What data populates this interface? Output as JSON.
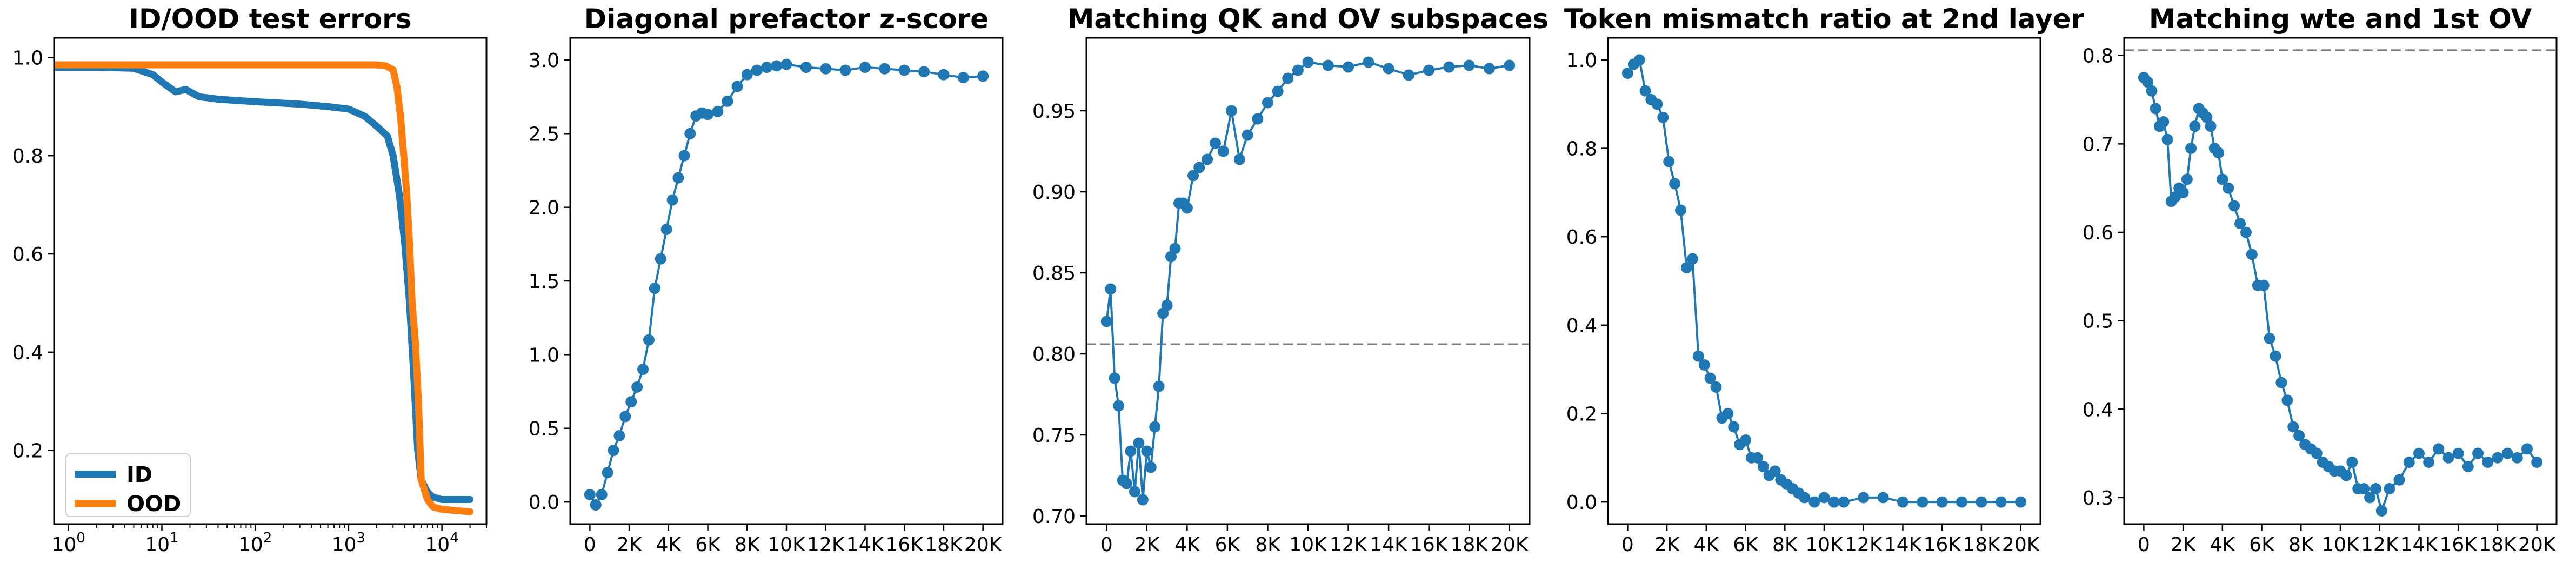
{
  "chart_data": [
    {
      "type": "line",
      "title": "ID/OOD test errors",
      "xscale": "log",
      "xlim": [
        0.7,
        30000
      ],
      "ylim": [
        0.05,
        1.04
      ],
      "xticks": [
        1,
        10,
        100,
        1000,
        10000
      ],
      "xtick_labels": [
        {
          "base": "10",
          "exp": "0"
        },
        {
          "base": "10",
          "exp": "1"
        },
        {
          "base": "10",
          "exp": "2"
        },
        {
          "base": "10",
          "exp": "3"
        },
        {
          "base": "10",
          "exp": "4"
        }
      ],
      "yticks": [
        0.2,
        0.4,
        0.6,
        0.8,
        1.0
      ],
      "ytick_labels": [
        "0.2",
        "0.4",
        "0.6",
        "0.8",
        "1.0"
      ],
      "legend": {
        "placement": "lower-left",
        "entries": [
          "ID",
          "OOD"
        ]
      },
      "series": [
        {
          "name": "ID",
          "color": "#1f77b4",
          "x": [
            0.7,
            2,
            5,
            8,
            10,
            14,
            18,
            25,
            40,
            100,
            300,
            600,
            1000,
            1500,
            2000,
            2600,
            3000,
            3500,
            4000,
            4500,
            5000,
            5500,
            6000,
            7000,
            8000,
            10000,
            20000
          ],
          "y": [
            0.98,
            0.98,
            0.978,
            0.965,
            0.95,
            0.93,
            0.935,
            0.92,
            0.915,
            0.91,
            0.905,
            0.9,
            0.895,
            0.88,
            0.86,
            0.84,
            0.8,
            0.72,
            0.62,
            0.5,
            0.35,
            0.2,
            0.14,
            0.115,
            0.105,
            0.1,
            0.1
          ]
        },
        {
          "name": "OOD",
          "color": "#ff7f0e",
          "x": [
            0.7,
            10,
            100,
            1000,
            2000,
            2500,
            3000,
            3300,
            3600,
            3900,
            4200,
            4500,
            4800,
            5200,
            5600,
            6000,
            7000,
            8000,
            10000,
            20000
          ],
          "y": [
            0.985,
            0.985,
            0.985,
            0.985,
            0.985,
            0.983,
            0.975,
            0.94,
            0.88,
            0.8,
            0.72,
            0.62,
            0.5,
            0.42,
            0.3,
            0.14,
            0.1,
            0.085,
            0.08,
            0.075
          ]
        }
      ]
    },
    {
      "type": "line",
      "title": "Diagonal prefactor z-score",
      "xlim": [
        -1000,
        21000
      ],
      "ylim": [
        -0.15,
        3.15
      ],
      "xticks": [
        0,
        2000,
        4000,
        6000,
        8000,
        10000,
        12000,
        14000,
        16000,
        18000,
        20000
      ],
      "xtick_labels": [
        "0",
        "2K",
        "4K",
        "6K",
        "8K",
        "10K",
        "12K",
        "14K",
        "16K",
        "18K",
        "20K"
      ],
      "yticks": [
        0.0,
        0.5,
        1.0,
        1.5,
        2.0,
        2.5,
        3.0
      ],
      "ytick_labels": [
        "0.0",
        "0.5",
        "1.0",
        "1.5",
        "2.0",
        "2.5",
        "3.0"
      ],
      "markers": true,
      "series": [
        {
          "color": "#1f77b4",
          "x": [
            0,
            300,
            600,
            900,
            1200,
            1500,
            1800,
            2100,
            2400,
            2700,
            3000,
            3300,
            3600,
            3900,
            4200,
            4500,
            4800,
            5100,
            5400,
            5700,
            6000,
            6500,
            7000,
            7500,
            8000,
            8500,
            9000,
            9500,
            10000,
            11000,
            12000,
            13000,
            14000,
            15000,
            16000,
            17000,
            18000,
            19000,
            20000
          ],
          "y": [
            0.05,
            -0.02,
            0.05,
            0.2,
            0.35,
            0.45,
            0.58,
            0.68,
            0.78,
            0.9,
            1.1,
            1.45,
            1.65,
            1.85,
            2.05,
            2.2,
            2.35,
            2.5,
            2.62,
            2.64,
            2.63,
            2.65,
            2.72,
            2.82,
            2.9,
            2.93,
            2.95,
            2.96,
            2.97,
            2.95,
            2.94,
            2.93,
            2.95,
            2.94,
            2.93,
            2.92,
            2.9,
            2.88,
            2.89
          ]
        }
      ]
    },
    {
      "type": "line",
      "title": "Matching QK and OV subspaces",
      "xlim": [
        -1000,
        21000
      ],
      "ylim": [
        0.695,
        0.995
      ],
      "xticks": [
        0,
        2000,
        4000,
        6000,
        8000,
        10000,
        12000,
        14000,
        16000,
        18000,
        20000
      ],
      "xtick_labels": [
        "0",
        "2K",
        "4K",
        "6K",
        "8K",
        "10K",
        "12K",
        "14K",
        "16K",
        "18K",
        "20K"
      ],
      "yticks": [
        0.7,
        0.75,
        0.8,
        0.85,
        0.9,
        0.95
      ],
      "ytick_labels": [
        "0.70",
        "0.75",
        "0.80",
        "0.85",
        "0.90",
        "0.95"
      ],
      "hline": 0.806,
      "markers": true,
      "series": [
        {
          "color": "#1f77b4",
          "x": [
            0,
            200,
            400,
            600,
            800,
            1000,
            1200,
            1400,
            1600,
            1800,
            2000,
            2200,
            2400,
            2600,
            2800,
            3000,
            3200,
            3400,
            3600,
            3800,
            4000,
            4300,
            4600,
            5000,
            5400,
            5800,
            6200,
            6600,
            7000,
            7500,
            8000,
            8500,
            9000,
            9500,
            10000,
            11000,
            12000,
            13000,
            14000,
            15000,
            16000,
            17000,
            18000,
            19000,
            20000
          ],
          "y": [
            0.82,
            0.84,
            0.785,
            0.768,
            0.722,
            0.72,
            0.74,
            0.715,
            0.745,
            0.71,
            0.74,
            0.73,
            0.755,
            0.78,
            0.825,
            0.83,
            0.86,
            0.865,
            0.893,
            0.893,
            0.89,
            0.91,
            0.915,
            0.92,
            0.93,
            0.925,
            0.95,
            0.92,
            0.935,
            0.945,
            0.955,
            0.962,
            0.97,
            0.975,
            0.98,
            0.978,
            0.977,
            0.98,
            0.976,
            0.972,
            0.975,
            0.977,
            0.978,
            0.976,
            0.978
          ]
        }
      ]
    },
    {
      "type": "line",
      "title": "Token mismatch ratio at 2nd layer",
      "xlim": [
        -1000,
        21000
      ],
      "ylim": [
        -0.05,
        1.05
      ],
      "xticks": [
        0,
        2000,
        4000,
        6000,
        8000,
        10000,
        12000,
        14000,
        16000,
        18000,
        20000
      ],
      "xtick_labels": [
        "0",
        "2K",
        "4K",
        "6K",
        "8K",
        "10K",
        "12K",
        "14K",
        "16K",
        "18K",
        "20K"
      ],
      "yticks": [
        0.0,
        0.2,
        0.4,
        0.6,
        0.8,
        1.0
      ],
      "ytick_labels": [
        "0.0",
        "0.2",
        "0.4",
        "0.6",
        "0.8",
        "1.0"
      ],
      "markers": true,
      "series": [
        {
          "color": "#1f77b4",
          "x": [
            0,
            300,
            600,
            900,
            1200,
            1500,
            1800,
            2100,
            2400,
            2700,
            3000,
            3300,
            3600,
            3900,
            4200,
            4500,
            4800,
            5100,
            5400,
            5700,
            6000,
            6300,
            6600,
            6900,
            7200,
            7500,
            7800,
            8100,
            8400,
            8700,
            9000,
            9500,
            10000,
            10500,
            11000,
            12000,
            13000,
            14000,
            15000,
            16000,
            17000,
            18000,
            19000,
            20000
          ],
          "y": [
            0.97,
            0.99,
            1.0,
            0.93,
            0.91,
            0.9,
            0.87,
            0.77,
            0.72,
            0.66,
            0.53,
            0.55,
            0.33,
            0.31,
            0.28,
            0.26,
            0.19,
            0.2,
            0.17,
            0.13,
            0.14,
            0.1,
            0.1,
            0.08,
            0.06,
            0.07,
            0.05,
            0.04,
            0.03,
            0.02,
            0.01,
            0.0,
            0.01,
            0.0,
            0.0,
            0.01,
            0.01,
            0.0,
            0.0,
            0.0,
            0.0,
            0.0,
            0.0,
            0.0
          ]
        }
      ]
    },
    {
      "type": "line",
      "title": "Matching wte and 1st OV",
      "xlim": [
        -1000,
        21000
      ],
      "ylim": [
        0.27,
        0.82
      ],
      "xticks": [
        0,
        2000,
        4000,
        6000,
        8000,
        10000,
        12000,
        14000,
        16000,
        18000,
        20000
      ],
      "xtick_labels": [
        "0",
        "2K",
        "4K",
        "6K",
        "8K",
        "10K",
        "12K",
        "14K",
        "16K",
        "18K",
        "20K"
      ],
      "yticks": [
        0.3,
        0.4,
        0.5,
        0.6,
        0.7,
        0.8
      ],
      "ytick_labels": [
        "0.3",
        "0.4",
        "0.5",
        "0.6",
        "0.7",
        "0.8"
      ],
      "hline": 0.806,
      "markers": true,
      "series": [
        {
          "color": "#1f77b4",
          "x": [
            0,
            200,
            400,
            600,
            800,
            1000,
            1200,
            1400,
            1600,
            1800,
            2000,
            2200,
            2400,
            2600,
            2800,
            3000,
            3200,
            3400,
            3600,
            3800,
            4000,
            4300,
            4600,
            4900,
            5200,
            5500,
            5800,
            6100,
            6400,
            6700,
            7000,
            7300,
            7600,
            7900,
            8200,
            8500,
            8800,
            9100,
            9400,
            9700,
            10000,
            10300,
            10600,
            10900,
            11200,
            11500,
            11800,
            12100,
            12500,
            13000,
            13500,
            14000,
            14500,
            15000,
            15500,
            16000,
            16500,
            17000,
            17500,
            18000,
            18500,
            19000,
            19500,
            20000
          ],
          "y": [
            0.775,
            0.77,
            0.76,
            0.74,
            0.72,
            0.725,
            0.705,
            0.635,
            0.64,
            0.65,
            0.645,
            0.66,
            0.695,
            0.72,
            0.74,
            0.735,
            0.73,
            0.72,
            0.695,
            0.69,
            0.66,
            0.65,
            0.63,
            0.61,
            0.6,
            0.575,
            0.54,
            0.54,
            0.48,
            0.46,
            0.43,
            0.41,
            0.38,
            0.37,
            0.36,
            0.355,
            0.35,
            0.34,
            0.335,
            0.33,
            0.33,
            0.325,
            0.34,
            0.31,
            0.31,
            0.3,
            0.31,
            0.285,
            0.31,
            0.32,
            0.34,
            0.35,
            0.34,
            0.355,
            0.345,
            0.35,
            0.335,
            0.35,
            0.34,
            0.345,
            0.35,
            0.345,
            0.355,
            0.34
          ]
        }
      ]
    }
  ]
}
